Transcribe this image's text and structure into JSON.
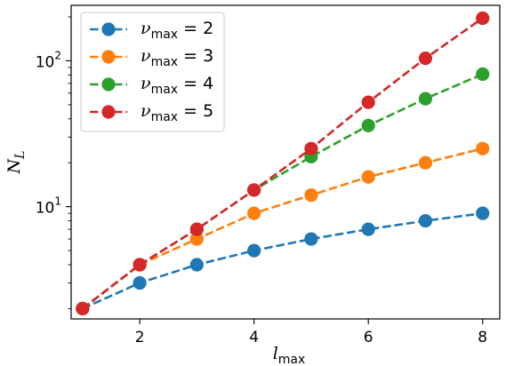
{
  "chart_data": {
    "type": "line",
    "x": [
      1,
      2,
      3,
      4,
      5,
      6,
      7,
      8
    ],
    "xlabel": "l",
    "xlabel_sub": "max",
    "ylabel": "N",
    "ylabel_sub": "L",
    "y_scale": "log",
    "xlim": [
      0.8,
      8.3
    ],
    "ylim": [
      1.7,
      240
    ],
    "x_ticks": [
      2,
      4,
      6,
      8
    ],
    "x_tick_labels": [
      "2",
      "4",
      "6",
      "8"
    ],
    "y_ticks": [
      10,
      100
    ],
    "y_tick_labels": [
      {
        "base": "10",
        "exp": "1"
      },
      {
        "base": "10",
        "exp": "2"
      }
    ],
    "grid": false,
    "legend_position": "top-left",
    "series": [
      {
        "name": {
          "symbol": "ν",
          "sub": "max",
          "rest": " = 2"
        },
        "color": "#1f77b4",
        "line_style": "dashed",
        "marker": "circle",
        "values": [
          2,
          3,
          4,
          5,
          6,
          7,
          8,
          9
        ]
      },
      {
        "name": {
          "symbol": "ν",
          "sub": "max",
          "rest": " = 3"
        },
        "color": "#ff7f0e",
        "line_style": "dashed",
        "marker": "circle",
        "values": [
          2,
          4,
          6,
          9,
          12,
          16,
          20,
          25
        ]
      },
      {
        "name": {
          "symbol": "ν",
          "sub": "max",
          "rest": " = 4"
        },
        "color": "#2ca02c",
        "line_style": "dashed",
        "marker": "circle",
        "values": [
          2,
          4,
          7,
          13,
          22,
          36,
          55,
          81
        ]
      },
      {
        "name": {
          "symbol": "ν",
          "sub": "max",
          "rest": " = 5"
        },
        "color": "#d62728",
        "line_style": "dashed",
        "marker": "circle",
        "values": [
          2,
          4,
          7,
          13,
          25,
          52,
          104,
          196
        ]
      }
    ]
  }
}
